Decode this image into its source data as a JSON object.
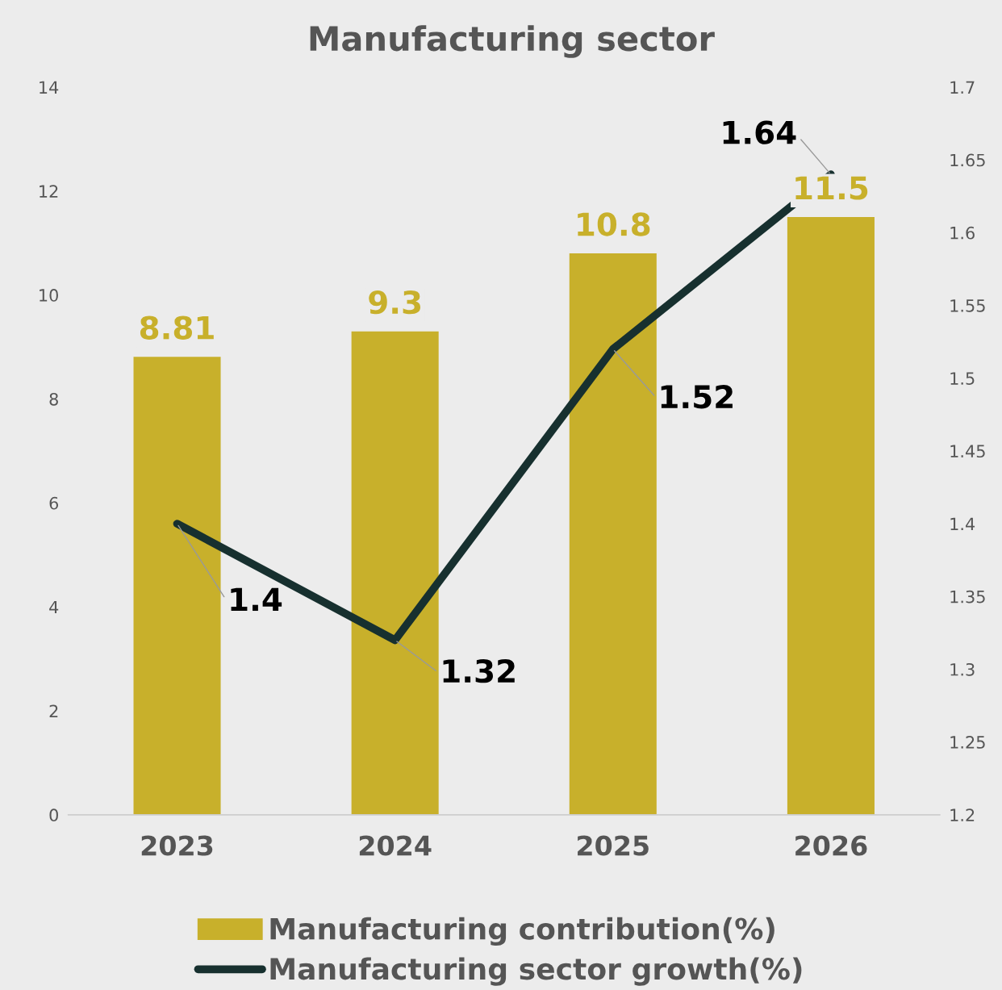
{
  "chart_data": {
    "type": "bar",
    "title": "Manufacturing sector",
    "categories": [
      "2023",
      "2024",
      "2025",
      "2026"
    ],
    "series": [
      {
        "name": "Manufacturing contribution(%)",
        "color": "#c8b02b",
        "values": [
          8.81,
          9.3,
          10.8,
          11.5
        ]
      },
      {
        "name": "Manufacturing sector growth(%)",
        "type": "line",
        "axis": "y2",
        "color": "#17302f",
        "values": [
          1.4,
          1.32,
          1.52,
          1.64
        ]
      }
    ],
    "ylim": [
      0,
      14
    ],
    "yticks": [
      0,
      2,
      4,
      6,
      8,
      10,
      12,
      14
    ],
    "y2lim": [
      1.2,
      1.7
    ],
    "y2ticks": [
      1.2,
      1.25,
      1.3,
      1.35,
      1.4,
      1.45,
      1.5,
      1.55,
      1.6,
      1.65,
      1.7
    ],
    "data_labels": true,
    "grid": false,
    "legend": "bottom",
    "marker": "none",
    "line_style": "solid"
  }
}
